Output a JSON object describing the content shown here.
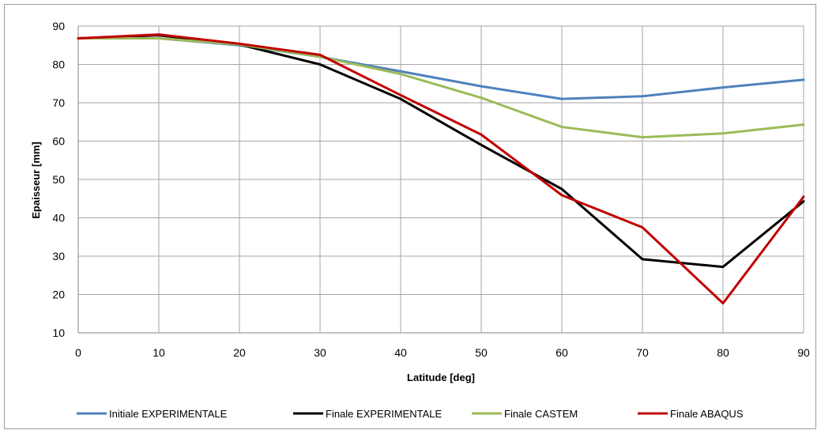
{
  "chart_data": {
    "type": "line",
    "title": "",
    "xlabel": "Latitude [deg]",
    "ylabel": "Epaisseur [mm]",
    "xlim": [
      0,
      90
    ],
    "ylim": [
      10,
      90
    ],
    "xticks": [
      0,
      10,
      20,
      30,
      40,
      50,
      60,
      70,
      80,
      90
    ],
    "yticks": [
      10,
      20,
      30,
      40,
      50,
      60,
      70,
      80,
      90
    ],
    "grid": true,
    "legend_position": "bottom",
    "series": [
      {
        "name": "Initiale EXPERIMENTALE",
        "color": "#4F81BD",
        "x": [
          0,
          10,
          20,
          30,
          40,
          50,
          60,
          70,
          80,
          90
        ],
        "y": [
          86.8,
          86.8,
          85,
          82,
          78.2,
          74.3,
          71,
          71.7,
          74,
          76
        ]
      },
      {
        "name": "Finale EXPERIMENTALE",
        "color": "#000000",
        "x": [
          0,
          10,
          20,
          30,
          40,
          50,
          60,
          70,
          80,
          90
        ],
        "y": [
          86.8,
          87.6,
          85.2,
          80,
          71,
          59,
          47.5,
          29.2,
          27.2,
          44.3
        ]
      },
      {
        "name": "Finale CASTEM",
        "color": "#9BBB59",
        "x": [
          0,
          10,
          20,
          30,
          40,
          50,
          60,
          70,
          80,
          90
        ],
        "y": [
          86.8,
          86.8,
          85.2,
          82,
          77.5,
          71.3,
          63.7,
          61,
          62,
          64.3
        ]
      },
      {
        "name": "Finale ABAQUS",
        "color": "#C00000",
        "x": [
          0,
          10,
          20,
          30,
          40,
          50,
          60,
          70,
          80,
          90
        ],
        "y": [
          86.8,
          87.8,
          85.4,
          82.5,
          72,
          61.7,
          45.9,
          37.5,
          17.7,
          45.5
        ]
      }
    ]
  }
}
